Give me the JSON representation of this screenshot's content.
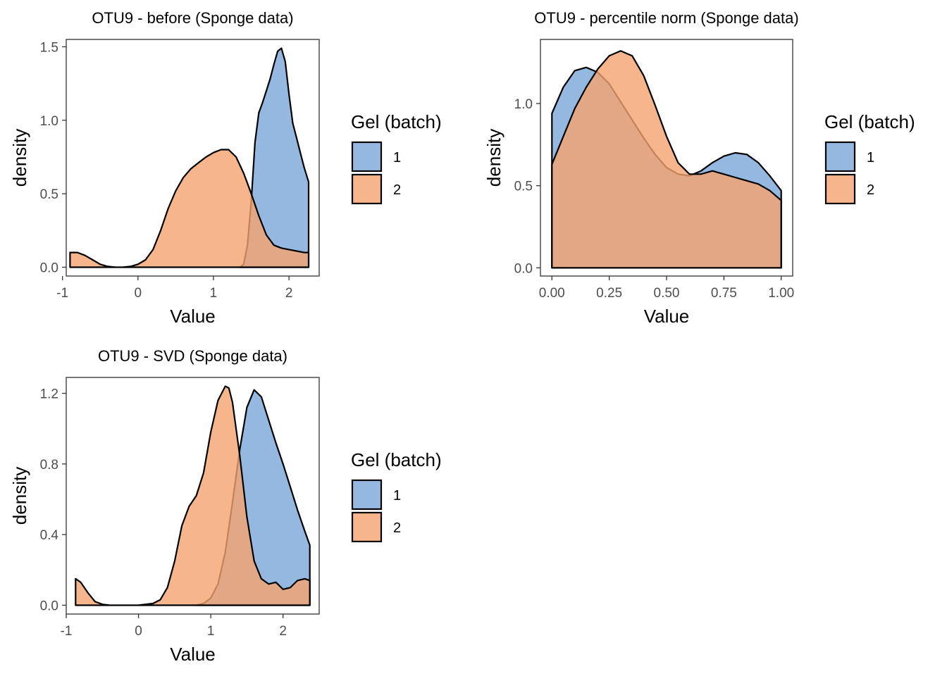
{
  "legend": {
    "title": "Gel (batch)",
    "items": [
      {
        "label": "1",
        "color": "#7AA6D8"
      },
      {
        "label": "2",
        "color": "#F5A36E"
      }
    ]
  },
  "chart_data": [
    {
      "type": "area",
      "title": "OTU9 - before (Sponge data)",
      "xlabel": "Value",
      "ylabel": "density",
      "xlim": [
        -0.95,
        2.4
      ],
      "ylim": [
        -0.06,
        1.55
      ],
      "xticks": [
        -1,
        0,
        1,
        2
      ],
      "xtick_labels": [
        "-1",
        "0",
        "1",
        "2"
      ],
      "yticks": [
        0,
        0.5,
        1.0,
        1.5
      ],
      "ytick_labels": [
        "0.0",
        "0.5",
        "1.0",
        "1.5"
      ],
      "grid": false,
      "legend_position": "right",
      "series": [
        {
          "name": "1",
          "color": "#7AA6D8",
          "x": [
            1.35,
            1.4,
            1.45,
            1.5,
            1.55,
            1.6,
            1.65,
            1.7,
            1.75,
            1.8,
            1.85,
            1.9,
            1.95,
            2.0,
            2.05,
            2.1,
            2.15,
            2.2,
            2.26
          ],
          "y": [
            0.0,
            0.02,
            0.15,
            0.45,
            0.85,
            1.05,
            1.12,
            1.2,
            1.28,
            1.38,
            1.47,
            1.49,
            1.4,
            1.18,
            0.98,
            0.88,
            0.78,
            0.68,
            0.58
          ]
        },
        {
          "name": "2",
          "color": "#F5A36E",
          "x": [
            -0.9,
            -0.8,
            -0.7,
            -0.6,
            -0.5,
            -0.4,
            -0.3,
            -0.2,
            -0.1,
            0.0,
            0.1,
            0.2,
            0.3,
            0.4,
            0.5,
            0.6,
            0.7,
            0.8,
            0.9,
            1.0,
            1.1,
            1.2,
            1.3,
            1.4,
            1.5,
            1.6,
            1.7,
            1.8,
            1.9,
            2.0,
            2.1,
            2.2,
            2.26
          ],
          "y": [
            0.1,
            0.1,
            0.08,
            0.05,
            0.02,
            0.005,
            0.0,
            0.0,
            0.005,
            0.02,
            0.05,
            0.12,
            0.25,
            0.4,
            0.52,
            0.61,
            0.67,
            0.71,
            0.75,
            0.78,
            0.8,
            0.8,
            0.75,
            0.64,
            0.5,
            0.35,
            0.22,
            0.15,
            0.13,
            0.12,
            0.11,
            0.1,
            0.1
          ]
        }
      ]
    },
    {
      "type": "area",
      "title": "OTU9 - percentile norm (Sponge data)",
      "xlabel": "Value",
      "ylabel": "density",
      "xlim": [
        -0.05,
        1.05
      ],
      "ylim": [
        -0.05,
        1.39
      ],
      "xticks": [
        0.0,
        0.25,
        0.5,
        0.75,
        1.0
      ],
      "xtick_labels": [
        "0.00",
        "0.25",
        "0.50",
        "0.75",
        "1.00"
      ],
      "yticks": [
        0,
        0.5,
        1.0
      ],
      "ytick_labels": [
        "0.0",
        "0.5",
        "1.0"
      ],
      "grid": false,
      "legend_position": "right",
      "series": [
        {
          "name": "1",
          "color": "#7AA6D8",
          "x": [
            0.0,
            0.05,
            0.1,
            0.15,
            0.2,
            0.25,
            0.3,
            0.35,
            0.4,
            0.45,
            0.5,
            0.55,
            0.6,
            0.65,
            0.7,
            0.75,
            0.8,
            0.85,
            0.9,
            0.95,
            1.0
          ],
          "y": [
            0.94,
            1.1,
            1.2,
            1.22,
            1.19,
            1.12,
            1.01,
            0.9,
            0.79,
            0.69,
            0.61,
            0.57,
            0.56,
            0.59,
            0.64,
            0.68,
            0.7,
            0.69,
            0.64,
            0.56,
            0.47
          ]
        },
        {
          "name": "2",
          "color": "#F5A36E",
          "x": [
            0.0,
            0.05,
            0.1,
            0.15,
            0.2,
            0.25,
            0.3,
            0.35,
            0.4,
            0.45,
            0.5,
            0.55,
            0.6,
            0.65,
            0.7,
            0.75,
            0.8,
            0.85,
            0.9,
            0.95,
            1.0
          ],
          "y": [
            0.63,
            0.8,
            0.97,
            1.1,
            1.21,
            1.29,
            1.32,
            1.29,
            1.17,
            0.99,
            0.8,
            0.64,
            0.57,
            0.57,
            0.59,
            0.57,
            0.55,
            0.53,
            0.51,
            0.47,
            0.41
          ]
        }
      ]
    },
    {
      "type": "area",
      "title": "OTU9 - SVD (Sponge data)",
      "xlabel": "Value",
      "ylabel": "density",
      "xlim": [
        -1.0,
        2.5
      ],
      "ylim": [
        -0.05,
        1.29
      ],
      "xticks": [
        -1,
        0,
        1,
        2
      ],
      "xtick_labels": [
        "-1",
        "0",
        "1",
        "2"
      ],
      "yticks": [
        0,
        0.4,
        0.8,
        1.2
      ],
      "ytick_labels": [
        "0.0",
        "0.4",
        "0.8",
        "1.2"
      ],
      "grid": false,
      "legend_position": "right",
      "series": [
        {
          "name": "1",
          "color": "#7AA6D8",
          "x": [
            0.8,
            0.9,
            1.0,
            1.1,
            1.2,
            1.3,
            1.4,
            1.5,
            1.6,
            1.7,
            1.8,
            1.9,
            2.0,
            2.1,
            2.2,
            2.3,
            2.37
          ],
          "y": [
            0.0,
            0.01,
            0.04,
            0.12,
            0.3,
            0.58,
            0.88,
            1.12,
            1.22,
            1.18,
            1.05,
            0.92,
            0.8,
            0.67,
            0.54,
            0.42,
            0.34
          ]
        },
        {
          "name": "2",
          "color": "#F5A36E",
          "x": [
            -0.87,
            -0.8,
            -0.7,
            -0.6,
            -0.5,
            -0.4,
            -0.2,
            0.0,
            0.2,
            0.3,
            0.4,
            0.5,
            0.6,
            0.7,
            0.8,
            0.9,
            1.0,
            1.1,
            1.2,
            1.25,
            1.3,
            1.4,
            1.5,
            1.6,
            1.7,
            1.8,
            1.9,
            2.0,
            2.1,
            2.2,
            2.3,
            2.37
          ],
          "y": [
            0.15,
            0.13,
            0.07,
            0.02,
            0.005,
            0.0,
            0.0,
            0.0,
            0.01,
            0.03,
            0.1,
            0.25,
            0.45,
            0.56,
            0.62,
            0.75,
            0.98,
            1.16,
            1.24,
            1.23,
            1.15,
            0.85,
            0.5,
            0.25,
            0.15,
            0.12,
            0.13,
            0.09,
            0.1,
            0.14,
            0.15,
            0.14
          ]
        }
      ]
    }
  ]
}
